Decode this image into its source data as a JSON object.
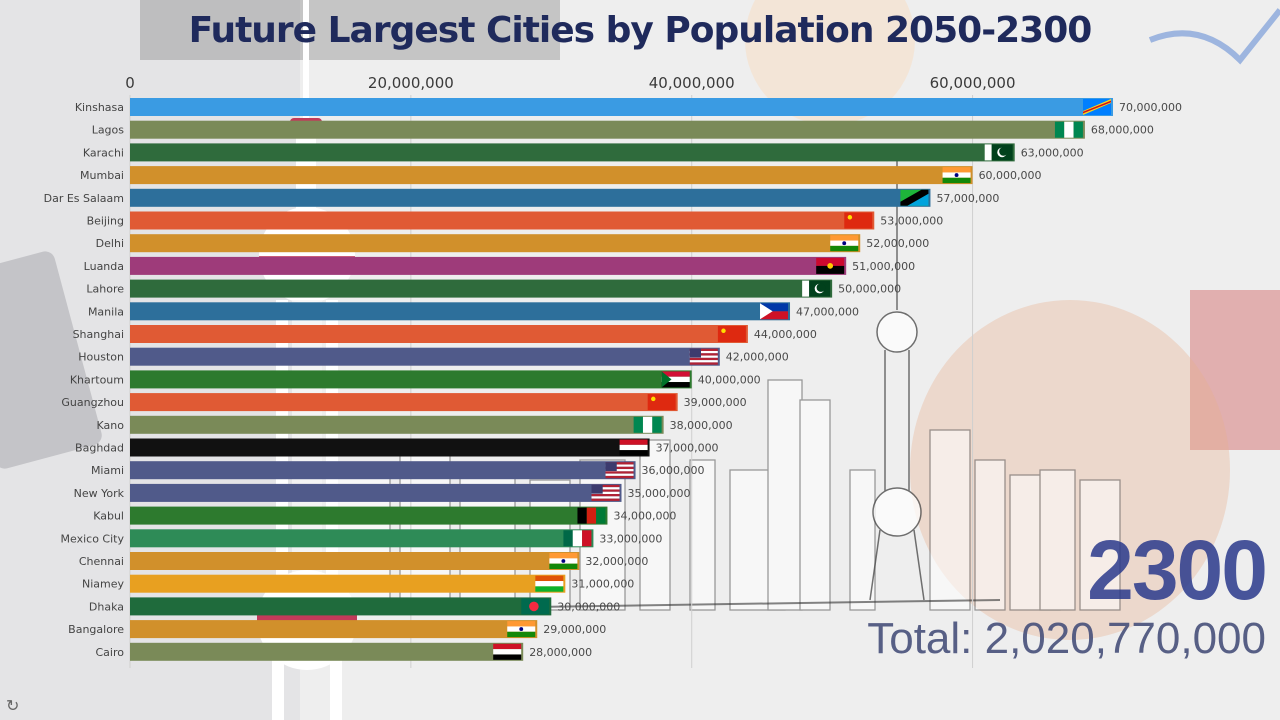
{
  "title": "Future Largest Cities by Population 2050-2300",
  "year_label": "2300",
  "total_label": "Total: 2,020,770,000",
  "replay_icon": "replay-icon",
  "chart_data": {
    "type": "bar",
    "orientation": "horizontal",
    "title": "Future Largest Cities by Population 2050-2300",
    "xlim": [
      0,
      70000000
    ],
    "ticks": [
      {
        "value": 0,
        "label": "0"
      },
      {
        "value": 20000000,
        "label": "20,000,000"
      },
      {
        "value": 40000000,
        "label": "40,000,000"
      },
      {
        "value": 60000000,
        "label": "60,000,000"
      }
    ],
    "grid": true,
    "bars": [
      {
        "city": "Kinshasa",
        "value": 70000000,
        "label": "70,000,000",
        "color": "#3a9be3",
        "flag": "dr-congo"
      },
      {
        "city": "Lagos",
        "value": 68000000,
        "label": "68,000,000",
        "color": "#7a8a58",
        "flag": "nigeria"
      },
      {
        "city": "Karachi",
        "value": 63000000,
        "label": "63,000,000",
        "color": "#2f6b3c",
        "flag": "pakistan"
      },
      {
        "city": "Mumbai",
        "value": 60000000,
        "label": "60,000,000",
        "color": "#d1902b",
        "flag": "india"
      },
      {
        "city": "Dar Es Salaam",
        "value": 57000000,
        "label": "57,000,000",
        "color": "#2d6f9b",
        "flag": "tanzania"
      },
      {
        "city": "Beijing",
        "value": 53000000,
        "label": "53,000,000",
        "color": "#e05a34",
        "flag": "china"
      },
      {
        "city": "Delhi",
        "value": 52000000,
        "label": "52,000,000",
        "color": "#d1902b",
        "flag": "india"
      },
      {
        "city": "Luanda",
        "value": 51000000,
        "label": "51,000,000",
        "color": "#9e3b7a",
        "flag": "angola"
      },
      {
        "city": "Lahore",
        "value": 50000000,
        "label": "50,000,000",
        "color": "#2f6b3c",
        "flag": "pakistan"
      },
      {
        "city": "Manila",
        "value": 47000000,
        "label": "47,000,000",
        "color": "#2d6f9b",
        "flag": "philippines"
      },
      {
        "city": "Shanghai",
        "value": 44000000,
        "label": "44,000,000",
        "color": "#e05a34",
        "flag": "china"
      },
      {
        "city": "Houston",
        "value": 42000000,
        "label": "42,000,000",
        "color": "#505a8a",
        "flag": "usa"
      },
      {
        "city": "Khartoum",
        "value": 40000000,
        "label": "40,000,000",
        "color": "#2d7a2e",
        "flag": "sudan"
      },
      {
        "city": "Guangzhou",
        "value": 39000000,
        "label": "39,000,000",
        "color": "#e05a34",
        "flag": "china"
      },
      {
        "city": "Kano",
        "value": 38000000,
        "label": "38,000,000",
        "color": "#7a8a58",
        "flag": "nigeria"
      },
      {
        "city": "Baghdad",
        "value": 37000000,
        "label": "37,000,000",
        "color": "#111111",
        "flag": "iraq"
      },
      {
        "city": "Miami",
        "value": 36000000,
        "label": "36,000,000",
        "color": "#505a8a",
        "flag": "usa"
      },
      {
        "city": "New York",
        "value": 35000000,
        "label": "35,000,000",
        "color": "#505a8a",
        "flag": "usa"
      },
      {
        "city": "Kabul",
        "value": 34000000,
        "label": "34,000,000",
        "color": "#2d7a2e",
        "flag": "afghanistan"
      },
      {
        "city": "Mexico City",
        "value": 33000000,
        "label": "33,000,000",
        "color": "#2e8b57",
        "flag": "mexico"
      },
      {
        "city": "Chennai",
        "value": 32000000,
        "label": "32,000,000",
        "color": "#d1902b",
        "flag": "india"
      },
      {
        "city": "Niamey",
        "value": 31000000,
        "label": "31,000,000",
        "color": "#e8a020",
        "flag": "niger"
      },
      {
        "city": "Dhaka",
        "value": 30000000,
        "label": "30,000,000",
        "color": "#1f6b3c",
        "flag": "bangladesh"
      },
      {
        "city": "Bangalore",
        "value": 29000000,
        "label": "29,000,000",
        "color": "#d1902b",
        "flag": "india"
      },
      {
        "city": "Cairo",
        "value": 28000000,
        "label": "28,000,000",
        "color": "#7a8a58",
        "flag": "egypt"
      }
    ]
  }
}
